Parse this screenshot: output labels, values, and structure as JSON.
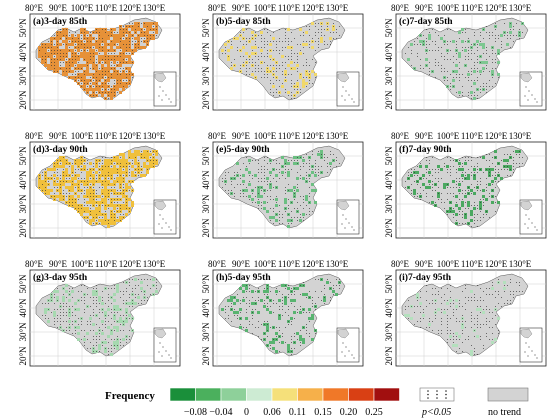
{
  "figure": {
    "lon_ticks": [
      "80°E",
      "90°E",
      "100°E",
      "110°E",
      "120°E",
      "130°E"
    ],
    "lat_ticks": [
      "20°N",
      "30°N",
      "40°N",
      "50°N"
    ],
    "panels": [
      {
        "label": "(a)3-day 85th",
        "color": "#e69138",
        "coverage": 0.72,
        "dot_density": 0.6
      },
      {
        "label": "(b)5-day 85th",
        "color": "#f1d86b",
        "coverage": 0.16,
        "dot_density": 0.45
      },
      {
        "label": "(c)7-day 85th",
        "color": "#7cc790",
        "coverage": 0.12,
        "dot_density": 0.4
      },
      {
        "label": "(d)3-day 90th",
        "color": "#f0c03c",
        "coverage": 0.62,
        "dot_density": 0.55
      },
      {
        "label": "(e)5-day 90th",
        "color": "#6cbf82",
        "coverage": 0.14,
        "dot_density": 0.4
      },
      {
        "label": "(f)7-day 90th",
        "color": "#4aa860",
        "coverage": 0.16,
        "dot_density": 0.4
      },
      {
        "label": "(g)3-day 95th",
        "color": "#a6d9b0",
        "coverage": 0.2,
        "dot_density": 0.45
      },
      {
        "label": "(h)5-day 95th",
        "color": "#58b470",
        "coverage": 0.16,
        "dot_density": 0.35
      },
      {
        "label": "(i)7-day 95th",
        "color": "#b4e0bd",
        "coverage": 0.06,
        "dot_density": 0.35
      }
    ]
  },
  "legend": {
    "title": "Frequency",
    "colors": [
      "#1a8f3a",
      "#4bb05d",
      "#8ed09a",
      "#cdebd3",
      "#f5e07a",
      "#f6b04a",
      "#f07828",
      "#d94014",
      "#a10f0f"
    ],
    "ticks": [
      "−0.08",
      "−0.04",
      "0",
      "0.06",
      "0.11",
      "0.15",
      "0.20",
      "0.25"
    ],
    "significance_label": "p<0.05",
    "no_trend_label": "no trend",
    "no_trend_color": "#d3d3d3"
  }
}
